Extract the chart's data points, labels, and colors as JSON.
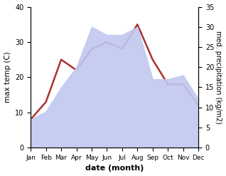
{
  "months": [
    "Jan",
    "Feb",
    "Mar",
    "Apr",
    "May",
    "Jun",
    "Jul",
    "Aug",
    "Sep",
    "Oct",
    "Nov",
    "Dec"
  ],
  "temperature": [
    8,
    13,
    25,
    22,
    28,
    30,
    28,
    35,
    25,
    18,
    18,
    12
  ],
  "precipitation": [
    7,
    9,
    15,
    20,
    30,
    28,
    28,
    30,
    17,
    17,
    18,
    12
  ],
  "temp_color": "#b03030",
  "precip_color": "#c0c8f0",
  "temp_ylim": [
    0,
    40
  ],
  "precip_ylim": [
    0,
    35
  ],
  "temp_yticks": [
    0,
    10,
    20,
    30,
    40
  ],
  "precip_yticks": [
    0,
    5,
    10,
    15,
    20,
    25,
    30,
    35
  ],
  "xlabel": "date (month)",
  "ylabel_left": "max temp (C)",
  "ylabel_right": "med. precipitation (kg/m2)",
  "temp_linewidth": 1.8,
  "background_color": "#ffffff"
}
